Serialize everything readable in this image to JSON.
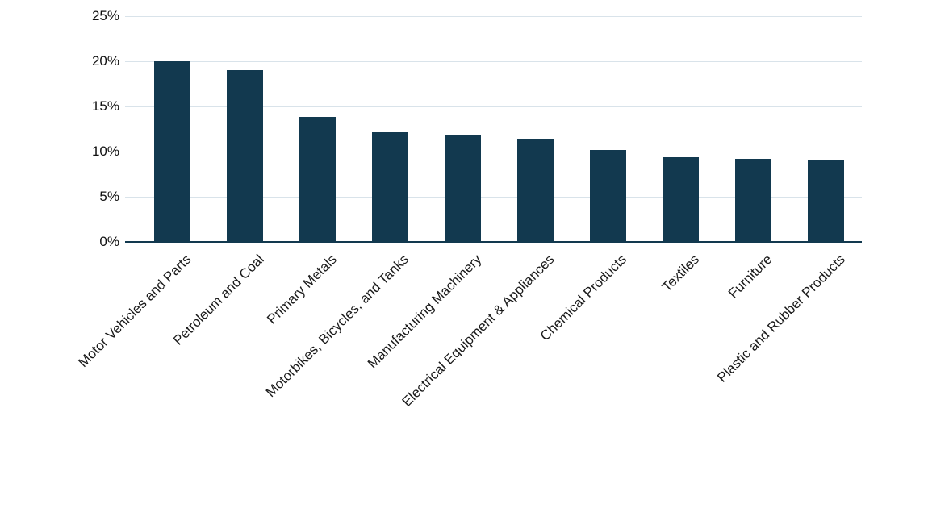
{
  "chart_data": {
    "type": "bar",
    "categories": [
      "Motor Vehicles and Parts",
      "Petroleum and Coal",
      "Primary Metals",
      "Motorbikes, Bicycles, and Tanks",
      "Manufacturing Machinery",
      "Electrical Equipment & Appliances",
      "Chemical Products",
      "Textiles",
      "Furniture",
      "Plastic and Rubber Products"
    ],
    "values": [
      20.0,
      19.0,
      13.8,
      12.1,
      11.8,
      11.4,
      10.2,
      9.4,
      9.2,
      9.0
    ],
    "title": "",
    "xlabel": "",
    "ylabel": "",
    "ylim": [
      0,
      25
    ],
    "yticks": [
      0,
      5,
      10,
      15,
      20,
      25
    ],
    "ytick_labels": [
      "0%",
      "5%",
      "10%",
      "15%",
      "20%",
      "25%"
    ],
    "bar_color": "#12394F",
    "gridline_color": "#d9e3ea",
    "axis_color": "#12394F",
    "text_color": "#1a1a1a",
    "grid": "horizontal",
    "legend_position": "none"
  }
}
